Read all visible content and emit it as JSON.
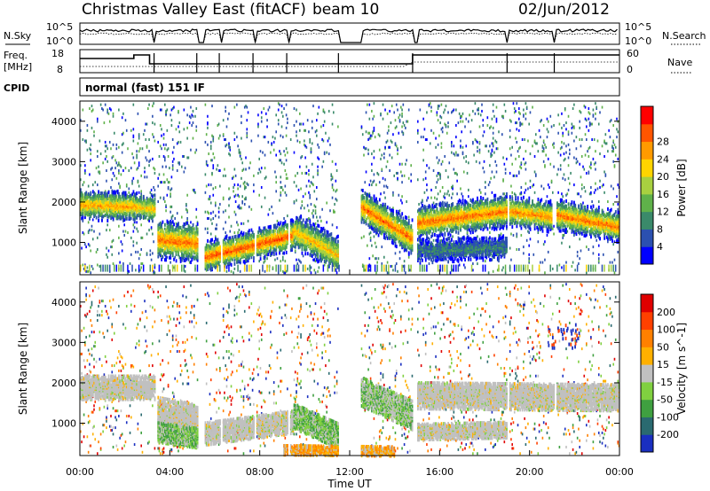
{
  "header": {
    "title": "Christmas Valley East (fitACF)",
    "beam": "beam 10",
    "date": "02/Jun/2012"
  },
  "panels": {
    "nsky": {
      "label": "N.Sky",
      "tick_top": "10^5",
      "tick_bottom": "10^0"
    },
    "nsearch": {
      "label": "N.Search",
      "tick_top": "10^5",
      "tick_bottom": "10^0"
    },
    "freq": {
      "label_line1": "Freq.",
      "label_line2": "[MHz]",
      "ticks": [
        "18",
        "8"
      ]
    },
    "nave": {
      "label": "Nave",
      "ticks": [
        "60",
        "0"
      ]
    },
    "cpid": {
      "label": "CPID",
      "text": "normal (fast) 151 IF"
    }
  },
  "chart_data": [
    {
      "type": "heatmap",
      "name": "power",
      "ylabel": "Slant Range [km]",
      "y_ticks": [
        "1000",
        "2000",
        "3000",
        "4000"
      ],
      "ylim": [
        200,
        4500
      ],
      "colorbar": {
        "label": "Power [dB]",
        "ticks": [
          "4",
          "8",
          "12",
          "16",
          "20",
          "24",
          "28"
        ],
        "colors": [
          "#0000ff",
          "#2b50b0",
          "#3a8a6a",
          "#5fb14a",
          "#a8d040",
          "#ffd400",
          "#ff9a00",
          "#ff5500",
          "#ff0000"
        ]
      },
      "bands": [
        {
          "t": [
            0,
            2.5
          ],
          "center": [
            1950,
            1900
          ],
          "width": 250,
          "level": 0.75
        },
        {
          "t": [
            2.5,
            3.3
          ],
          "center": [
            1900,
            1850
          ],
          "width": 230,
          "level": 0.7
        },
        {
          "t": [
            3.3,
            5.2
          ],
          "center": [
            1100,
            1000
          ],
          "width": 330,
          "level": 0.85
        },
        {
          "t": [
            5.5,
            9.5
          ],
          "center": [
            650,
            1200
          ],
          "width": 260,
          "level": 0.9
        },
        {
          "t": [
            9.5,
            11.5
          ],
          "center": [
            1300,
            700
          ],
          "width": 300,
          "level": 0.7
        },
        {
          "t": [
            12.5,
            14.8
          ],
          "center": [
            1900,
            1100
          ],
          "width": 300,
          "level": 0.85
        },
        {
          "t": [
            15,
            19
          ],
          "center": [
            1500,
            1800
          ],
          "width": 280,
          "level": 0.85
        },
        {
          "t": [
            19,
            21
          ],
          "center": [
            1800,
            1650
          ],
          "width": 260,
          "level": 0.8
        },
        {
          "t": [
            21.2,
            24
          ],
          "center": [
            1700,
            1400
          ],
          "width": 260,
          "level": 0.85
        },
        {
          "t": [
            15,
            19
          ],
          "center": [
            800,
            900
          ],
          "width": 200,
          "level": 0.25
        }
      ]
    },
    {
      "type": "heatmap",
      "name": "velocity",
      "xlabel": "Time UT",
      "ylabel": "Slant Range [km]",
      "x_ticks": [
        "00:00",
        "04:00",
        "08:00",
        "12:00",
        "16:00",
        "20:00",
        "00:00"
      ],
      "xlim": [
        0,
        24
      ],
      "y_ticks": [
        "1000",
        "2000",
        "3000",
        "4000"
      ],
      "ylim": [
        200,
        4500
      ],
      "colorbar": {
        "label": "Velocity [m s^-1]",
        "ticks": [
          "200",
          "100",
          "50",
          "15",
          "-15",
          "-50",
          "-100",
          "-200"
        ],
        "colors": [
          "#1a2fc0",
          "#2a6a70",
          "#3fa040",
          "#80d040",
          "#c0c0c0",
          "#ffb000",
          "#ff8000",
          "#ff4000",
          "#e00000"
        ]
      },
      "bands": [
        {
          "t": [
            0,
            3.3
          ],
          "center": [
            1900,
            1900
          ],
          "width": 300,
          "kind": "gray"
        },
        {
          "t": [
            3.3,
            5.2
          ],
          "center": [
            1250,
            1050
          ],
          "width": 420,
          "kind": "gray"
        },
        {
          "t": [
            3.3,
            5.2
          ],
          "center": [
            800,
            650
          ],
          "width": 250,
          "kind": "green"
        },
        {
          "t": [
            5.5,
            9.5
          ],
          "center": [
            750,
            1050
          ],
          "width": 280,
          "kind": "gray"
        },
        {
          "t": [
            9.5,
            11.5
          ],
          "center": [
            1200,
            700
          ],
          "width": 320,
          "kind": "green"
        },
        {
          "t": [
            12.5,
            14.8
          ],
          "center": [
            1800,
            1200
          ],
          "width": 360,
          "kind": "mix"
        },
        {
          "t": [
            15,
            24
          ],
          "center": [
            1700,
            1650
          ],
          "width": 330,
          "kind": "gray"
        },
        {
          "t": [
            15,
            19
          ],
          "center": [
            800,
            850
          ],
          "width": 200,
          "kind": "gray"
        },
        {
          "t": [
            9,
            14
          ],
          "center": [
            350,
            320
          ],
          "width": 120,
          "kind": "orange"
        }
      ]
    }
  ]
}
